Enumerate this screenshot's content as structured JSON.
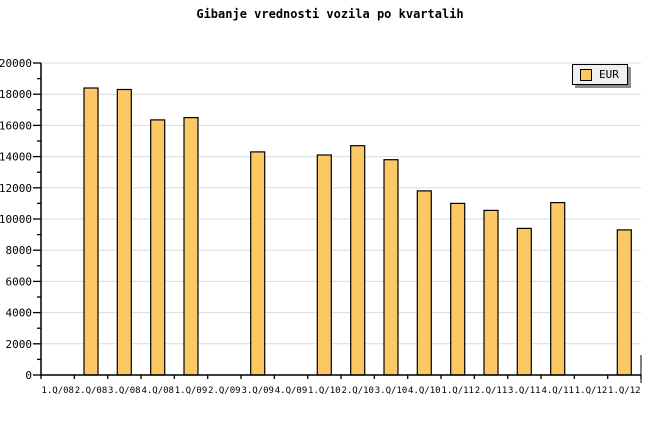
{
  "chart_data": {
    "type": "bar",
    "title": "Gibanje vrednosti vozila po kvartalih",
    "categories": [
      "1.Q/08",
      "2.Q/08",
      "3.Q/08",
      "4.Q/08",
      "1.Q/09",
      "2.Q/09",
      "3.Q/09",
      "4.Q/09",
      "1.Q/10",
      "2.Q/10",
      "3.Q/10",
      "4.Q/10",
      "1.Q/11",
      "2.Q/11",
      "3.Q/11",
      "4.Q/11",
      "1.Q/12",
      "1.Q/12"
    ],
    "series": [
      {
        "name": "EUR",
        "values": [
          null,
          18400,
          18300,
          16350,
          16500,
          null,
          14300,
          null,
          14100,
          14700,
          13800,
          11800,
          11000,
          10550,
          9400,
          11050,
          null,
          9300
        ]
      }
    ],
    "xlabel": "",
    "ylabel": "",
    "ylim": [
      0,
      20000
    ],
    "ytick_step": 2000,
    "ytick_minor_step": 1000,
    "ytick_labels": [
      "0",
      "2000",
      "4000",
      "6000",
      "8000",
      "10000",
      "12000",
      "14000",
      "16000",
      "18000",
      "20000"
    ],
    "grid": "horizontal-major",
    "legend": {
      "entries": [
        "EUR"
      ],
      "position": "top-right"
    },
    "colors": {
      "bar_fill": "#FCC864",
      "bar_border": "#000000",
      "grid": "#DCDCDC",
      "axis": "#000000",
      "text": "#000000",
      "background": "#FFFFFF",
      "legend_bg": "#F0F0F0",
      "legend_shadow": "#8C8C8C"
    }
  }
}
